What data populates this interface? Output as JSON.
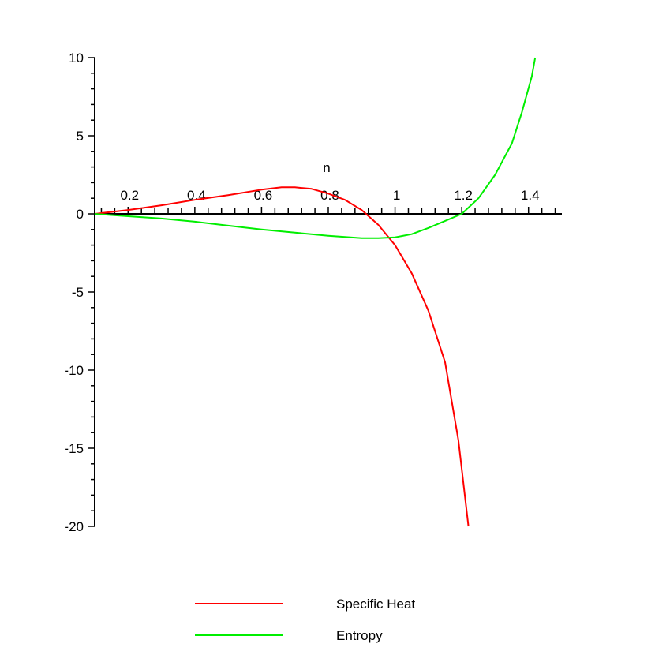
{
  "chart_data": {
    "type": "line",
    "title": "",
    "xlabel": "n",
    "ylabel": "",
    "xlim": [
      0.1,
      1.5
    ],
    "ylim": [
      -20,
      10
    ],
    "xticks": [
      0.2,
      0.4,
      0.6,
      0.8,
      1,
      1.2,
      1.4
    ],
    "xtick_labels": [
      "0.2",
      "0.4",
      "0.6",
      "0.8",
      "1",
      "1.2",
      "1.4"
    ],
    "yticks": [
      10,
      5,
      0,
      -5,
      -10,
      -15,
      -20
    ],
    "ytick_labels": [
      "10",
      "5",
      "0",
      "-5",
      "-10",
      "-15",
      "-20"
    ],
    "grid": false,
    "legend_position": "bottom",
    "series": [
      {
        "name": "Specific Heat",
        "color": "#ff0000",
        "x": [
          0.1,
          0.2,
          0.3,
          0.4,
          0.5,
          0.6,
          0.66,
          0.7,
          0.75,
          0.8,
          0.85,
          0.9,
          0.95,
          1.0,
          1.05,
          1.1,
          1.15,
          1.19,
          1.22
        ],
        "y": [
          0.0,
          0.25,
          0.55,
          0.9,
          1.2,
          1.55,
          1.7,
          1.7,
          1.6,
          1.3,
          0.9,
          0.25,
          -0.7,
          -2.0,
          -3.8,
          -6.2,
          -9.5,
          -14.5,
          -20.0
        ]
      },
      {
        "name": "Entropy",
        "color": "#00ee00",
        "x": [
          0.1,
          0.2,
          0.3,
          0.4,
          0.5,
          0.6,
          0.7,
          0.8,
          0.9,
          0.95,
          1.0,
          1.05,
          1.1,
          1.15,
          1.2,
          1.25,
          1.3,
          1.35,
          1.38,
          1.41,
          1.42
        ],
        "y": [
          0.0,
          -0.15,
          -0.3,
          -0.5,
          -0.75,
          -1.0,
          -1.2,
          -1.4,
          -1.55,
          -1.55,
          -1.5,
          -1.3,
          -0.9,
          -0.45,
          0.0,
          1.0,
          2.5,
          4.5,
          6.5,
          8.8,
          10.0
        ]
      }
    ]
  }
}
